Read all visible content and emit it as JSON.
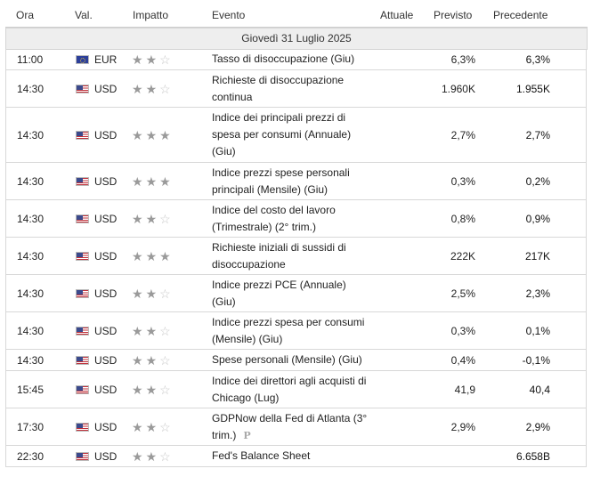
{
  "header": {
    "ora": "Ora",
    "val": "Val.",
    "impatto": "Impatto",
    "evento": "Evento",
    "attuale": "Attuale",
    "previsto": "Previsto",
    "precedente": "Precedente"
  },
  "date_label": "Giovedì 31 Luglio 2025",
  "rows": [
    {
      "time": "11:00",
      "flag": "eu-flag-icon",
      "currency": "EUR",
      "stars": 2,
      "event": [
        "Tasso di disoccupazione (Giu)"
      ],
      "actual": "",
      "forecast": "6,3%",
      "previous": "6,3%"
    },
    {
      "time": "14:30",
      "flag": "us-flag-icon",
      "currency": "USD",
      "stars": 2,
      "event": [
        "Richieste di disoccupazione",
        "continua"
      ],
      "actual": "",
      "forecast": "1.960K",
      "previous": "1.955K"
    },
    {
      "time": "14:30",
      "flag": "us-flag-icon",
      "currency": "USD",
      "stars": 3,
      "event": [
        "Indice dei principali prezzi di",
        "spesa per consumi (Annuale)",
        "(Giu)"
      ],
      "actual": "",
      "forecast": "2,7%",
      "previous": "2,7%"
    },
    {
      "time": "14:30",
      "flag": "us-flag-icon",
      "currency": "USD",
      "stars": 3,
      "event": [
        "Indice prezzi spese personali",
        "principali (Mensile) (Giu)"
      ],
      "actual": "",
      "forecast": "0,3%",
      "previous": "0,2%"
    },
    {
      "time": "14:30",
      "flag": "us-flag-icon",
      "currency": "USD",
      "stars": 2,
      "event": [
        "Indice del costo del lavoro",
        "(Trimestrale) (2° trim.)"
      ],
      "actual": "",
      "forecast": "0,8%",
      "previous": "0,9%"
    },
    {
      "time": "14:30",
      "flag": "us-flag-icon",
      "currency": "USD",
      "stars": 3,
      "event": [
        "Richieste iniziali di sussidi di",
        "disoccupazione"
      ],
      "actual": "",
      "forecast": "222K",
      "previous": "217K"
    },
    {
      "time": "14:30",
      "flag": "us-flag-icon",
      "currency": "USD",
      "stars": 2,
      "event": [
        "Indice prezzi PCE (Annuale)",
        "(Giu)"
      ],
      "actual": "",
      "forecast": "2,5%",
      "previous": "2,3%"
    },
    {
      "time": "14:30",
      "flag": "us-flag-icon",
      "currency": "USD",
      "stars": 2,
      "event": [
        "Indice prezzi spesa per consumi",
        "(Mensile) (Giu)"
      ],
      "actual": "",
      "forecast": "0,3%",
      "previous": "0,1%"
    },
    {
      "time": "14:30",
      "flag": "us-flag-icon",
      "currency": "USD",
      "stars": 2,
      "event": [
        "Spese personali (Mensile) (Giu)"
      ],
      "actual": "",
      "forecast": "0,4%",
      "previous": "-0,1%"
    },
    {
      "time": "15:45",
      "flag": "us-flag-icon",
      "currency": "USD",
      "stars": 2,
      "event": [
        "Indice dei direttori agli acquisti di",
        "Chicago (Lug)"
      ],
      "actual": "",
      "forecast": "41,9",
      "previous": "40,4"
    },
    {
      "time": "17:30",
      "flag": "us-flag-icon",
      "currency": "USD",
      "stars": 2,
      "event": [
        "GDPNow della Fed di Atlanta (3°",
        "trim.)"
      ],
      "preliminary_mark": "P",
      "actual": "",
      "forecast": "2,9%",
      "previous": "2,9%"
    },
    {
      "time": "22:30",
      "flag": "us-flag-icon",
      "currency": "USD",
      "stars": 2,
      "event": [
        "Fed's Balance Sheet"
      ],
      "actual": "",
      "forecast": "",
      "previous": "6.658B"
    }
  ]
}
